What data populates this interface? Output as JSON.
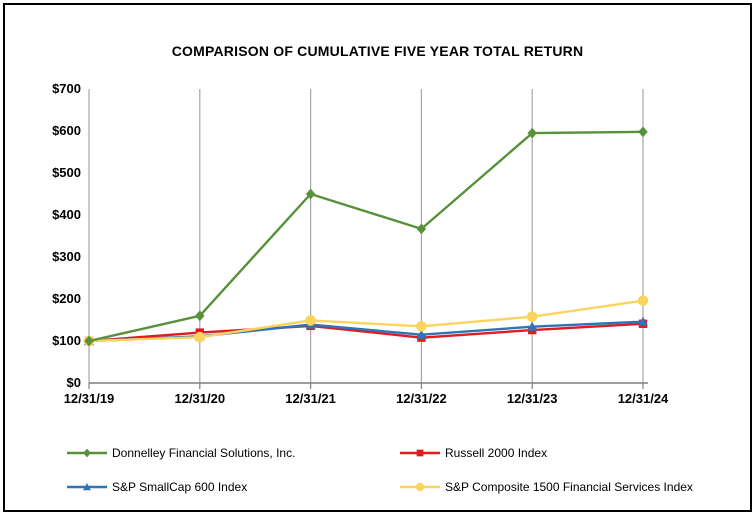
{
  "chart_data": {
    "type": "line",
    "title": "COMPARISON OF CUMULATIVE FIVE YEAR TOTAL RETURN",
    "x_categories": [
      "12/31/19",
      "12/31/20",
      "12/31/21",
      "12/31/22",
      "12/31/23",
      "12/31/24"
    ],
    "y_ticks": [
      0,
      100,
      200,
      300,
      400,
      500,
      600,
      700
    ],
    "y_tick_labels": [
      "$0",
      "$100",
      "$200",
      "$300",
      "$400",
      "$500",
      "$600",
      "$700"
    ],
    "ylim": [
      0,
      700
    ],
    "grid": "vertical-only",
    "legend_position": "bottom-two-columns",
    "colors": {
      "grid": "#A6A6A6",
      "axis": "#7F7F7F",
      "frame_border": "#000000",
      "background": "#FFFFFF",
      "text": "#000000"
    },
    "series": [
      {
        "name": "Donnelley Financial Solutions, Inc.",
        "color": "#579139",
        "marker": "diamond",
        "values": [
          100,
          160,
          450,
          367,
          595,
          598
        ]
      },
      {
        "name": "Russell 2000 Index",
        "color": "#E01B22",
        "marker": "square",
        "values": [
          100,
          120,
          136,
          108,
          126,
          141
        ]
      },
      {
        "name": "S&P SmallCap 600 Index",
        "color": "#2E75B6",
        "marker": "triangle",
        "values": [
          100,
          111,
          139,
          115,
          134,
          146
        ]
      },
      {
        "name": "S&P Composite 1500 Financial Services Index",
        "color": "#FAD45F",
        "marker": "circle",
        "values": [
          100,
          109,
          149,
          135,
          158,
          196
        ]
      }
    ]
  }
}
